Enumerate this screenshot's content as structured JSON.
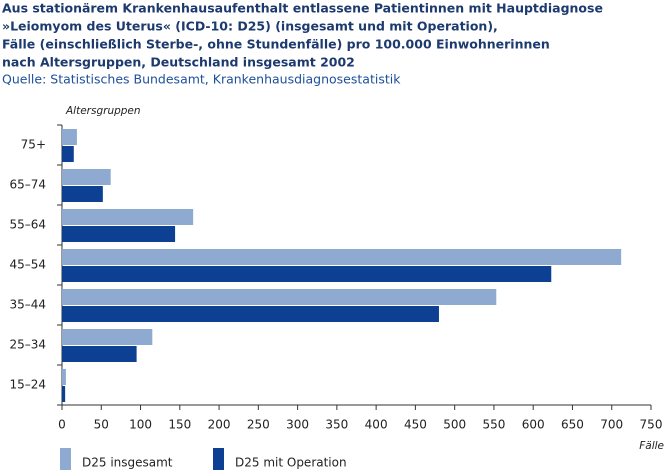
{
  "chart_data": {
    "type": "hbar",
    "title_lines": [
      "Aus stationärem Krankenhausaufenthalt entlassene Patientinnen mit Hauptdiagnose",
      "»Leiomyom des Uterus« (ICD-10: D25) (insgesamt und mit Operation),",
      "Fälle (einschließlich Sterbe-, ohne Stundenfälle) pro 100.000 Einwohnerinnen",
      "nach Altersgruppen, Deutschland insgesamt 2002"
    ],
    "subtitle": "Quelle: Statistisches Bundesamt, Krankenhausdiagnosestatistik",
    "y_label": "Altersgruppen",
    "x_label": "Fälle",
    "categories": [
      "75+",
      "65–74",
      "55–64",
      "45–54",
      "35–44",
      "25–34",
      "15–24"
    ],
    "series": [
      {
        "name": "D25 insgesamt",
        "color": "#8eaad0",
        "values": [
          19,
          62,
          167,
          712,
          553,
          115,
          5
        ]
      },
      {
        "name": "D25 mit Operation",
        "color": "#0d3f93",
        "values": [
          15,
          52,
          144,
          623,
          480,
          95,
          4
        ]
      }
    ],
    "xlim": [
      0,
      750
    ],
    "xticks": [
      0,
      50,
      100,
      150,
      200,
      250,
      300,
      350,
      400,
      450,
      500,
      550,
      600,
      650,
      700,
      750
    ]
  }
}
